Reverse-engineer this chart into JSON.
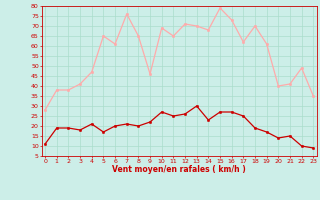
{
  "hours": [
    0,
    1,
    2,
    3,
    4,
    5,
    6,
    7,
    8,
    9,
    10,
    11,
    12,
    13,
    14,
    15,
    16,
    17,
    18,
    19,
    20,
    21,
    22,
    23
  ],
  "vent_moyen": [
    11,
    19,
    19,
    18,
    21,
    17,
    20,
    21,
    20,
    22,
    27,
    25,
    26,
    30,
    23,
    27,
    27,
    25,
    19,
    17,
    14,
    15,
    10,
    9
  ],
  "rafales": [
    28,
    38,
    38,
    41,
    47,
    65,
    61,
    76,
    65,
    46,
    69,
    65,
    71,
    70,
    68,
    79,
    73,
    62,
    70,
    61,
    40,
    41,
    49,
    35
  ],
  "xlabel": "Vent moyen/en rafales ( km/h )",
  "ylim_min": 5,
  "ylim_max": 80,
  "yticks": [
    5,
    10,
    15,
    20,
    25,
    30,
    35,
    40,
    45,
    50,
    55,
    60,
    65,
    70,
    75,
    80
  ],
  "bg_color": "#cceee8",
  "grid_color": "#aaddcc",
  "line_moyen_color": "#cc0000",
  "line_rafales_color": "#ffaaaa",
  "marker_size": 1.8,
  "line_width": 0.9,
  "figwidth": 3.2,
  "figheight": 2.0,
  "dpi": 100
}
